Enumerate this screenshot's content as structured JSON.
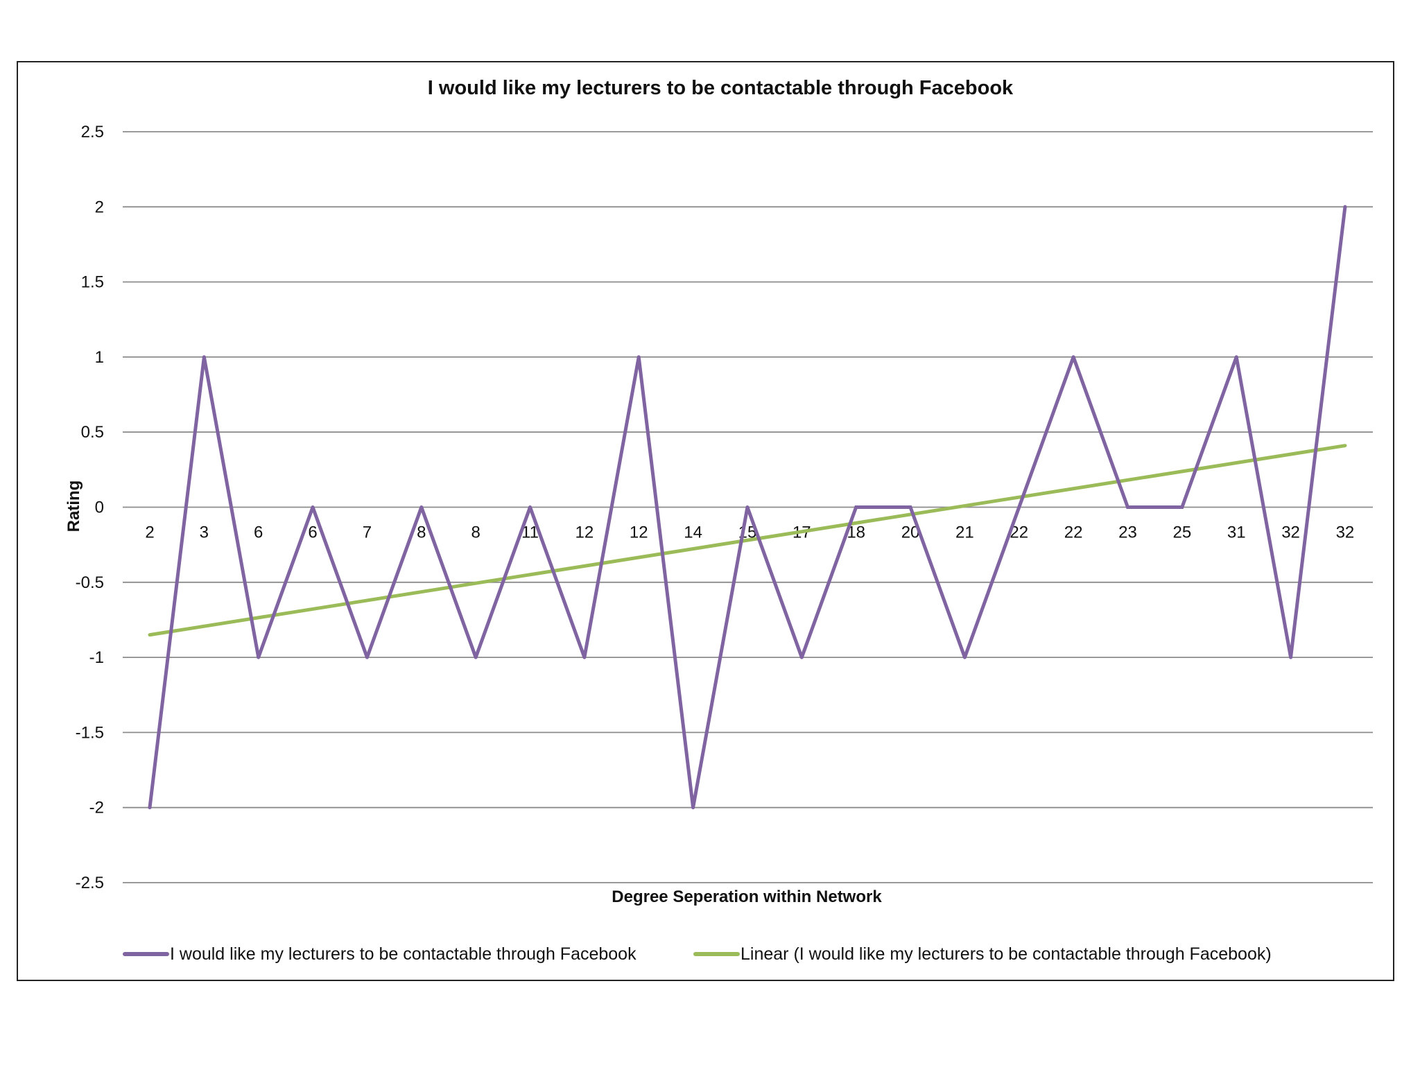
{
  "chart_data": {
    "type": "line",
    "title": "I would like my lecturers to be contactable through Facebook",
    "xlabel": "Degree Seperation within Network",
    "ylabel": "Rating",
    "ylim": [
      -2.5,
      2.5
    ],
    "yticks": [
      2.5,
      2,
      1.5,
      1,
      0.5,
      0,
      -0.5,
      -1,
      -1.5,
      -2,
      -2.5
    ],
    "ytick_labels": [
      "2.5",
      "2",
      "1.5",
      "1",
      "0.5",
      "0",
      "-0.5",
      "-1",
      "-1.5",
      "-2",
      "-2.5"
    ],
    "categories": [
      "2",
      "3",
      "6",
      "6",
      "7",
      "8",
      "8",
      "11",
      "12",
      "12",
      "14",
      "15",
      "17",
      "18",
      "20",
      "21",
      "22",
      "22",
      "23",
      "25",
      "31",
      "32",
      "32"
    ],
    "grid": true,
    "legend_position": "bottom",
    "series": [
      {
        "name": "I would like my lecturers to be contactable through Facebook",
        "color": "#8064a2",
        "values": [
          -2,
          1,
          -1,
          0,
          -1,
          0,
          -1,
          0,
          -1,
          1,
          -2,
          0,
          -1,
          0,
          0,
          -1,
          0,
          1,
          0,
          0,
          1,
          -1,
          2
        ]
      },
      {
        "name": "Linear (I would like my lecturers to be contactable through Facebook)",
        "color": "#9bbb59",
        "trendline": "linear",
        "start": -0.85,
        "end": 0.41
      }
    ]
  }
}
